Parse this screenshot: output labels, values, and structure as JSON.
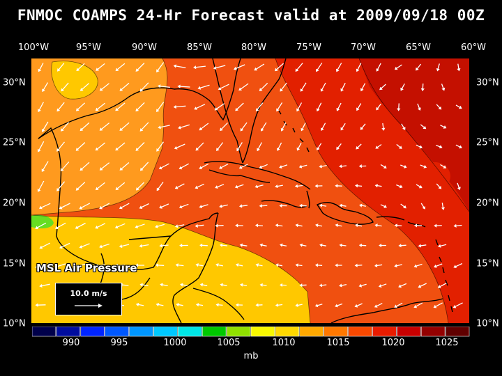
{
  "title": "FNMOC COAMPS 24-Hr Forecast valid at 2009/09/18 00Z",
  "lon_labels": [
    "100°W",
    "95°W",
    "90°W",
    "85°W",
    "80°W",
    "75°W",
    "70°W",
    "65°W",
    "60°W"
  ],
  "lat_labels": [
    "30°N",
    "25°N",
    "20°N",
    "15°N",
    "10°N"
  ],
  "field_label": "MSL Air Pressure",
  "vector_scale": "10.0 m/s",
  "colorbar": {
    "ticks": [
      "990",
      "995",
      "1000",
      "1005",
      "1010",
      "1015",
      "1020",
      "1025"
    ],
    "unit": "mb",
    "colors": [
      "#00004a",
      "#000c9e",
      "#0024ff",
      "#0058ff",
      "#0096ff",
      "#00c8ff",
      "#00e6e6",
      "#00c800",
      "#90e000",
      "#f8f800",
      "#ffd800",
      "#ffa800",
      "#ff7800",
      "#f84800",
      "#e81c00",
      "#c80000",
      "#940000",
      "#600000"
    ]
  },
  "map": {
    "ocean_colors": {
      "low": "#ffc800",
      "mid": "#ff9a1e",
      "high": "#f05010",
      "max": "#e22000",
      "peak": "#c41000",
      "green": "#66dd22"
    },
    "line_color": "#000000",
    "arrow_color": "#ffffff"
  }
}
